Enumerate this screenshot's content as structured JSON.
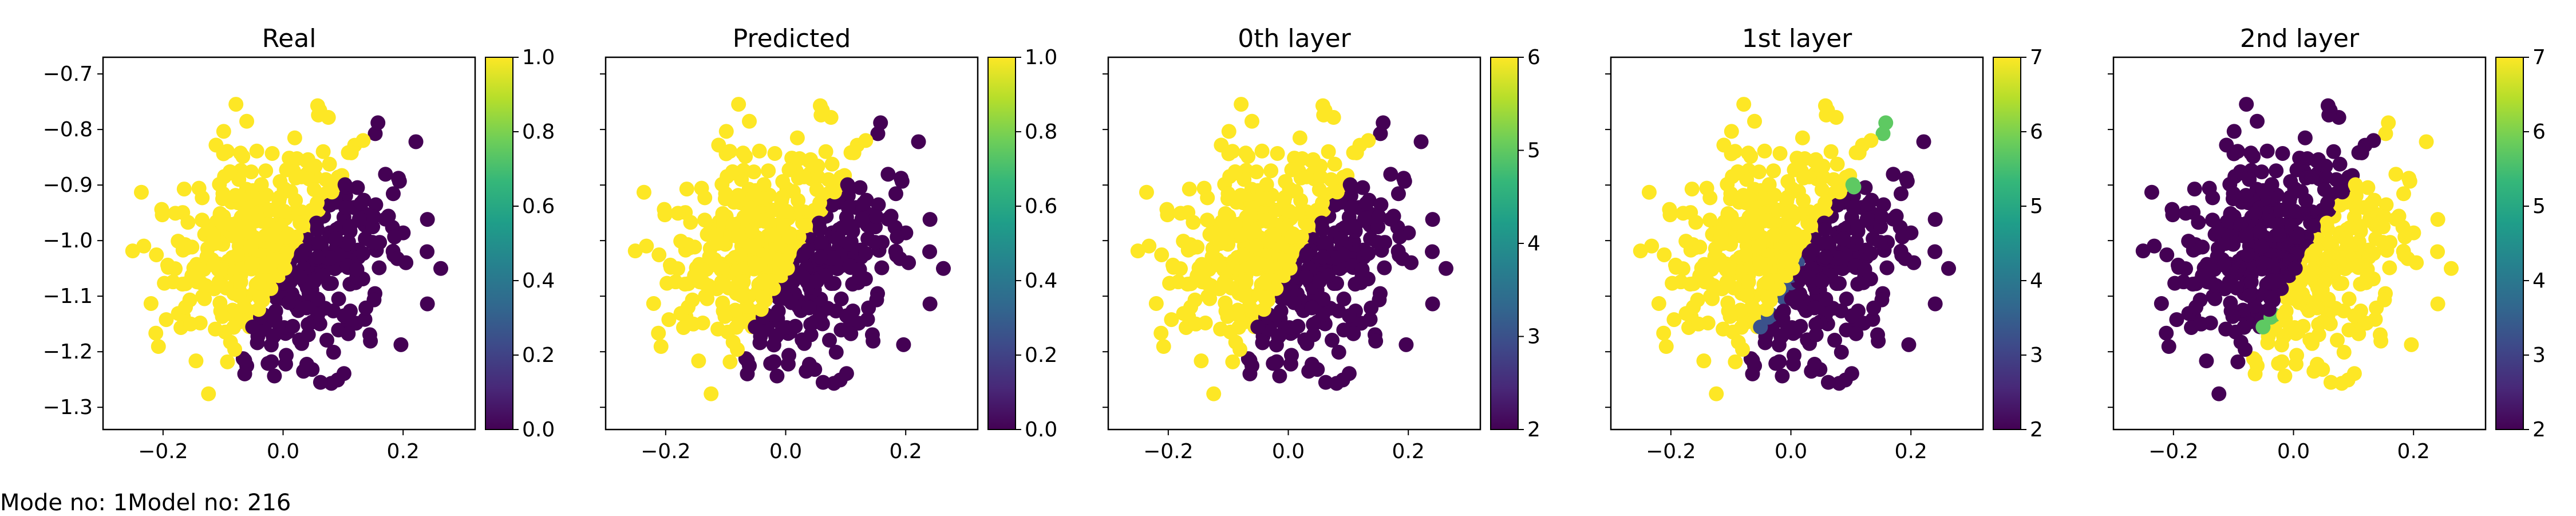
{
  "footer": "Mode no: 1Model no: 216",
  "colors": {
    "viridis": [
      "#440154",
      "#482878",
      "#3e4989",
      "#31688e",
      "#26828e",
      "#1f9e89",
      "#35b779",
      "#6ece58",
      "#b5de2b",
      "#fde725"
    ],
    "dark_purple": "#440154",
    "slate_blue": "#3b528b",
    "green": "#5ec962",
    "yellow": "#fde725"
  },
  "chart_data": [
    {
      "type": "scatter",
      "title": "Real",
      "xlim": [
        -0.3,
        0.32
      ],
      "ylim": [
        -1.34,
        -0.67
      ],
      "xticks": [
        -0.2,
        0.0,
        0.2
      ],
      "yticks": [
        -1.3,
        -1.2,
        -1.1,
        -1.0,
        -0.9,
        -0.8,
        -0.7
      ],
      "show_yticklabels": true,
      "colorbar": {
        "min": 0.0,
        "max": 1.0,
        "ticks": [
          "0.0",
          "0.2",
          "0.4",
          "0.6",
          "0.8",
          "1.0"
        ]
      },
      "point_colors": [
        "dark_purple",
        "yellow"
      ]
    },
    {
      "type": "scatter",
      "title": "Predicted",
      "xlim": [
        -0.3,
        0.32
      ],
      "ylim": [
        -1.34,
        -0.67
      ],
      "xticks": [
        -0.2,
        0.0,
        0.2
      ],
      "yticks": [
        -1.3,
        -1.2,
        -1.1,
        -1.0,
        -0.9,
        -0.8,
        -0.7
      ],
      "show_yticklabels": false,
      "colorbar": {
        "min": 0.0,
        "max": 1.0,
        "ticks": [
          "0.0",
          "0.2",
          "0.4",
          "0.6",
          "0.8",
          "1.0"
        ]
      },
      "point_colors": [
        "dark_purple",
        "yellow"
      ]
    },
    {
      "type": "scatter",
      "title": "0th layer",
      "xlim": [
        -0.3,
        0.32
      ],
      "ylim": [
        -1.34,
        -0.67
      ],
      "xticks": [
        -0.2,
        0.0,
        0.2
      ],
      "yticks": [
        -1.3,
        -1.2,
        -1.1,
        -1.0,
        -0.9,
        -0.8,
        -0.7
      ],
      "show_yticklabels": false,
      "colorbar": {
        "min": 2,
        "max": 6,
        "ticks": [
          "2",
          "3",
          "4",
          "5",
          "6"
        ]
      },
      "point_colors": [
        "dark_purple",
        "yellow"
      ]
    },
    {
      "type": "scatter",
      "title": "1st layer",
      "xlim": [
        -0.3,
        0.32
      ],
      "ylim": [
        -1.34,
        -0.67
      ],
      "xticks": [
        -0.2,
        0.0,
        0.2
      ],
      "yticks": [
        -1.3,
        -1.2,
        -1.1,
        -1.0,
        -0.9,
        -0.8,
        -0.7
      ],
      "show_yticklabels": false,
      "colorbar": {
        "min": 2,
        "max": 7,
        "ticks": [
          "2",
          "3",
          "4",
          "5",
          "6",
          "7"
        ]
      },
      "point_colors": [
        "dark_purple",
        "slate_blue",
        "green",
        "yellow"
      ]
    },
    {
      "type": "scatter",
      "title": "2nd layer",
      "xlim": [
        -0.3,
        0.32
      ],
      "ylim": [
        -1.34,
        -0.67
      ],
      "xticks": [
        -0.2,
        0.0,
        0.2
      ],
      "yticks": [
        -1.3,
        -1.2,
        -1.1,
        -1.0,
        -0.9,
        -0.8,
        -0.7
      ],
      "show_yticklabels": false,
      "colorbar": {
        "min": 2,
        "max": 7,
        "ticks": [
          "2",
          "3",
          "4",
          "5",
          "6",
          "7"
        ]
      },
      "point_colors": [
        "dark_purple",
        "slate_blue",
        "green",
        "yellow"
      ]
    }
  ]
}
